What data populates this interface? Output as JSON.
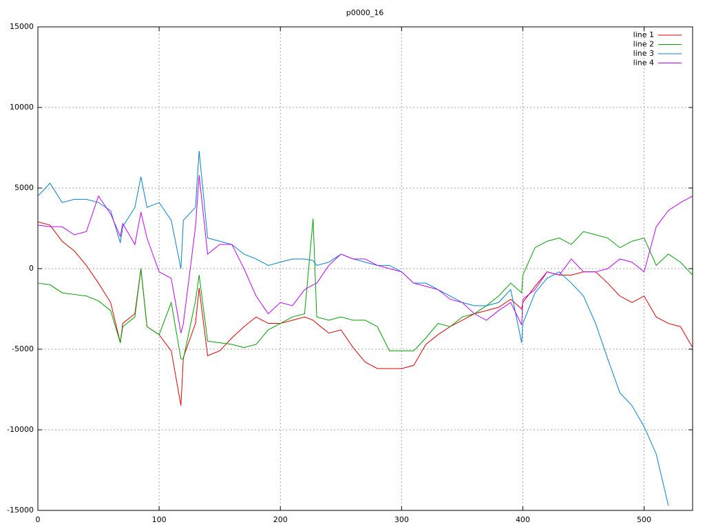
{
  "chart_data": {
    "type": "line",
    "title": "p0000_16",
    "x": [
      0,
      10,
      20,
      30,
      40,
      50,
      60,
      68,
      70,
      80,
      85,
      90,
      100,
      110,
      118,
      120,
      130,
      133,
      140,
      150,
      160,
      170,
      180,
      190,
      200,
      210,
      220,
      227,
      230,
      240,
      250,
      260,
      270,
      280,
      290,
      300,
      310,
      320,
      330,
      340,
      350,
      360,
      370,
      380,
      390,
      399,
      400,
      410,
      420,
      430,
      440,
      450,
      460,
      470,
      480,
      490,
      500,
      510,
      520,
      530,
      540
    ],
    "series": [
      {
        "name": "line 1",
        "color": "#e00000",
        "values": [
          2900,
          2700,
          1700,
          1100,
          200,
          -900,
          -2100,
          -4600,
          -3400,
          -2800,
          0,
          -3600,
          -4100,
          -5100,
          -8500,
          -5500,
          -3400,
          -1200,
          -5400,
          -5100,
          -4300,
          -3600,
          -3000,
          -3400,
          -3400,
          -3200,
          -3000,
          -3200,
          -3400,
          -4000,
          -3800,
          -4900,
          -5800,
          -6200,
          -6200,
          -6200,
          -6000,
          -4700,
          -4100,
          -3600,
          -3200,
          -2800,
          -2600,
          -2400,
          -1900,
          -2500,
          -2100,
          -1100,
          -200,
          -400,
          -400,
          -200,
          -200,
          -900,
          -1700,
          -2100,
          -1700,
          -3000,
          -3400,
          -3600,
          -4900
        ]
      },
      {
        "name": "line 2",
        "color": "#00a000",
        "values": [
          -900,
          -1000,
          -1500,
          -1600,
          -1700,
          -2000,
          -2600,
          -4600,
          -3600,
          -3000,
          0,
          -3600,
          -4100,
          -2100,
          -5600,
          -5600,
          -2000,
          -400,
          -4500,
          -4600,
          -4700,
          -4900,
          -4700,
          -3800,
          -3400,
          -3000,
          -2800,
          3100,
          -3000,
          -3200,
          -3000,
          -3200,
          -3200,
          -3600,
          -5100,
          -5100,
          -5100,
          -4300,
          -3400,
          -3600,
          -3000,
          -2800,
          -2300,
          -1700,
          -900,
          -1500,
          -400,
          1300,
          1700,
          1900,
          1500,
          2300,
          2100,
          1900,
          1300,
          1700,
          1900,
          200,
          900,
          400,
          -400
        ]
      },
      {
        "name": "line 3",
        "color": "#0080d0",
        "values": [
          4500,
          5300,
          4100,
          4300,
          4300,
          4100,
          3600,
          1600,
          2600,
          3800,
          5700,
          3800,
          4100,
          3000,
          0,
          3000,
          3800,
          7300,
          1900,
          1700,
          1500,
          900,
          600,
          200,
          400,
          600,
          600,
          500,
          200,
          400,
          900,
          600,
          400,
          200,
          200,
          -200,
          -900,
          -900,
          -1300,
          -1700,
          -2100,
          -2300,
          -2300,
          -2100,
          -1300,
          -4600,
          -3400,
          -1500,
          -600,
          -200,
          -900,
          -1700,
          -3400,
          -5600,
          -7700,
          -8500,
          -9800,
          -11500,
          -14700,
          null,
          null
        ]
      },
      {
        "name": "line 4",
        "color": "#c000ff",
        "values": [
          2700,
          2600,
          2600,
          2100,
          2300,
          4500,
          3400,
          2000,
          2800,
          1500,
          3500,
          1900,
          -200,
          -600,
          -4000,
          -3400,
          2600,
          5800,
          900,
          1500,
          1500,
          0,
          -1700,
          -2800,
          -2100,
          -2300,
          -1300,
          -1000,
          -900,
          200,
          900,
          600,
          600,
          200,
          0,
          -200,
          -900,
          -1100,
          -1300,
          -1900,
          -2100,
          -2800,
          -3200,
          -2600,
          -2100,
          -3500,
          -1900,
          -1300,
          -200,
          -400,
          600,
          -200,
          -200,
          0,
          600,
          400,
          -200,
          2600,
          3600,
          4100,
          4500
        ]
      }
    ],
    "xlim": [
      0,
      540
    ],
    "xticks": [
      0,
      100,
      200,
      300,
      400,
      500
    ],
    "ylim": [
      -15000,
      15000
    ],
    "yticks": [
      -15000,
      -10000,
      -5000,
      0,
      5000,
      10000,
      15000
    ],
    "grid": true,
    "legend": "top-right"
  }
}
